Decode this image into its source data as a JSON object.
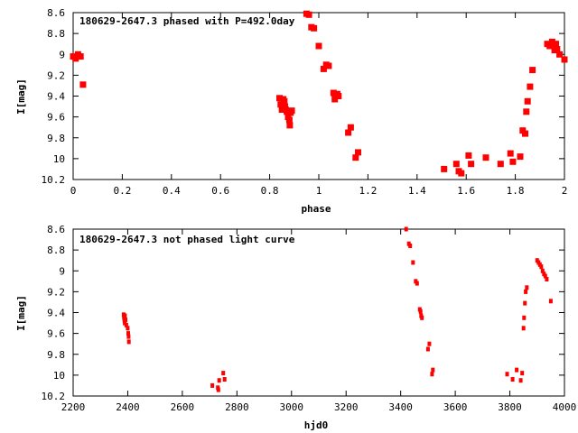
{
  "chart_data": [
    {
      "type": "scatter",
      "title": "180629-2647.3 phased with P=492.0day",
      "xlabel": "phase",
      "ylabel": "I[mag]",
      "xlim": [
        0,
        2
      ],
      "ylim": [
        10.2,
        8.6
      ],
      "y_inverted": true,
      "x_ticks": [
        "0",
        "0.2",
        "0.4",
        "0.6",
        "0.8",
        "1",
        "1.2",
        "1.4",
        "1.6",
        "1.8",
        "2"
      ],
      "y_ticks": [
        "8.6",
        "8.8",
        "9",
        "9.2",
        "9.4",
        "9.6",
        "9.8",
        "10",
        "10.2"
      ],
      "grid": false,
      "marker_color": "#ff0000",
      "series": [
        {
          "x": [
            0.0,
            0.01,
            0.02,
            0.03,
            0.04,
            0.84,
            0.845,
            0.85,
            0.855,
            0.86,
            0.862,
            0.865,
            0.87,
            0.875,
            0.88,
            0.882,
            0.885,
            0.89,
            0.95,
            0.96,
            0.97,
            0.98,
            1.0,
            1.02,
            1.03,
            1.04,
            1.06,
            1.065,
            1.07,
            1.075,
            1.08,
            1.12,
            1.13,
            1.15,
            1.16,
            1.51,
            1.56,
            1.57,
            1.58,
            1.61,
            1.62,
            1.68,
            1.74,
            1.78,
            1.79,
            1.82,
            1.83,
            1.84,
            1.845,
            1.85,
            1.86,
            1.87,
            1.93,
            1.94,
            1.95,
            1.96,
            1.965,
            1.97,
            1.98,
            2.0
          ],
          "y": [
            9.02,
            9.04,
            9.0,
            9.02,
            9.29,
            9.42,
            9.48,
            9.53,
            9.43,
            9.45,
            9.5,
            9.53,
            9.55,
            9.6,
            9.63,
            9.68,
            9.56,
            9.54,
            8.61,
            8.62,
            8.74,
            8.75,
            8.92,
            9.14,
            9.1,
            9.11,
            9.37,
            9.43,
            9.4,
            9.38,
            9.4,
            9.75,
            9.7,
            9.99,
            9.94,
            10.1,
            10.05,
            10.12,
            10.14,
            9.97,
            10.05,
            9.99,
            10.05,
            9.95,
            10.03,
            9.98,
            9.73,
            9.76,
            9.55,
            9.45,
            9.31,
            9.15,
            8.9,
            8.92,
            8.88,
            8.96,
            8.9,
            8.95,
            9.0,
            9.05
          ]
        }
      ]
    },
    {
      "type": "scatter",
      "title": "180629-2647.3 not phased light curve",
      "xlabel": "hjd0",
      "ylabel": "I[mag]",
      "xlim": [
        2200,
        4000
      ],
      "ylim": [
        10.2,
        8.6
      ],
      "y_inverted": true,
      "x_ticks": [
        "2200",
        "2400",
        "2600",
        "2800",
        "3000",
        "3200",
        "3400",
        "3600",
        "3800",
        "4000"
      ],
      "y_ticks": [
        "8.6",
        "8.8",
        "9",
        "9.2",
        "9.4",
        "9.6",
        "9.8",
        "10",
        "10.2"
      ],
      "grid": false,
      "marker_color": "#ff0000",
      "series": [
        {
          "x": [
            2385,
            2386,
            2387,
            2388,
            2389,
            2390,
            2392,
            2395,
            2400,
            2402,
            2403,
            2404,
            2710,
            2730,
            2732,
            2735,
            2750,
            2755,
            3420,
            3430,
            3435,
            3445,
            3455,
            3460,
            3470,
            3473,
            3475,
            3478,
            3500,
            3505,
            3515,
            3518,
            3790,
            3810,
            3825,
            3840,
            3845,
            3850,
            3852,
            3855,
            3858,
            3862,
            3900,
            3905,
            3910,
            3915,
            3920,
            3925,
            3930,
            3935,
            3950
          ],
          "y": [
            9.42,
            9.44,
            9.46,
            9.48,
            9.5,
            9.43,
            9.47,
            9.52,
            9.55,
            9.6,
            9.63,
            9.68,
            10.1,
            10.12,
            10.14,
            10.05,
            9.98,
            10.04,
            8.6,
            8.74,
            8.76,
            8.92,
            9.1,
            9.12,
            9.37,
            9.39,
            9.43,
            9.45,
            9.75,
            9.7,
            9.99,
            9.95,
            9.99,
            10.04,
            9.95,
            10.05,
            9.98,
            9.55,
            9.45,
            9.31,
            9.2,
            9.16,
            8.9,
            8.92,
            8.94,
            8.96,
            9.0,
            9.03,
            9.05,
            9.08,
            9.29
          ]
        }
      ]
    }
  ]
}
